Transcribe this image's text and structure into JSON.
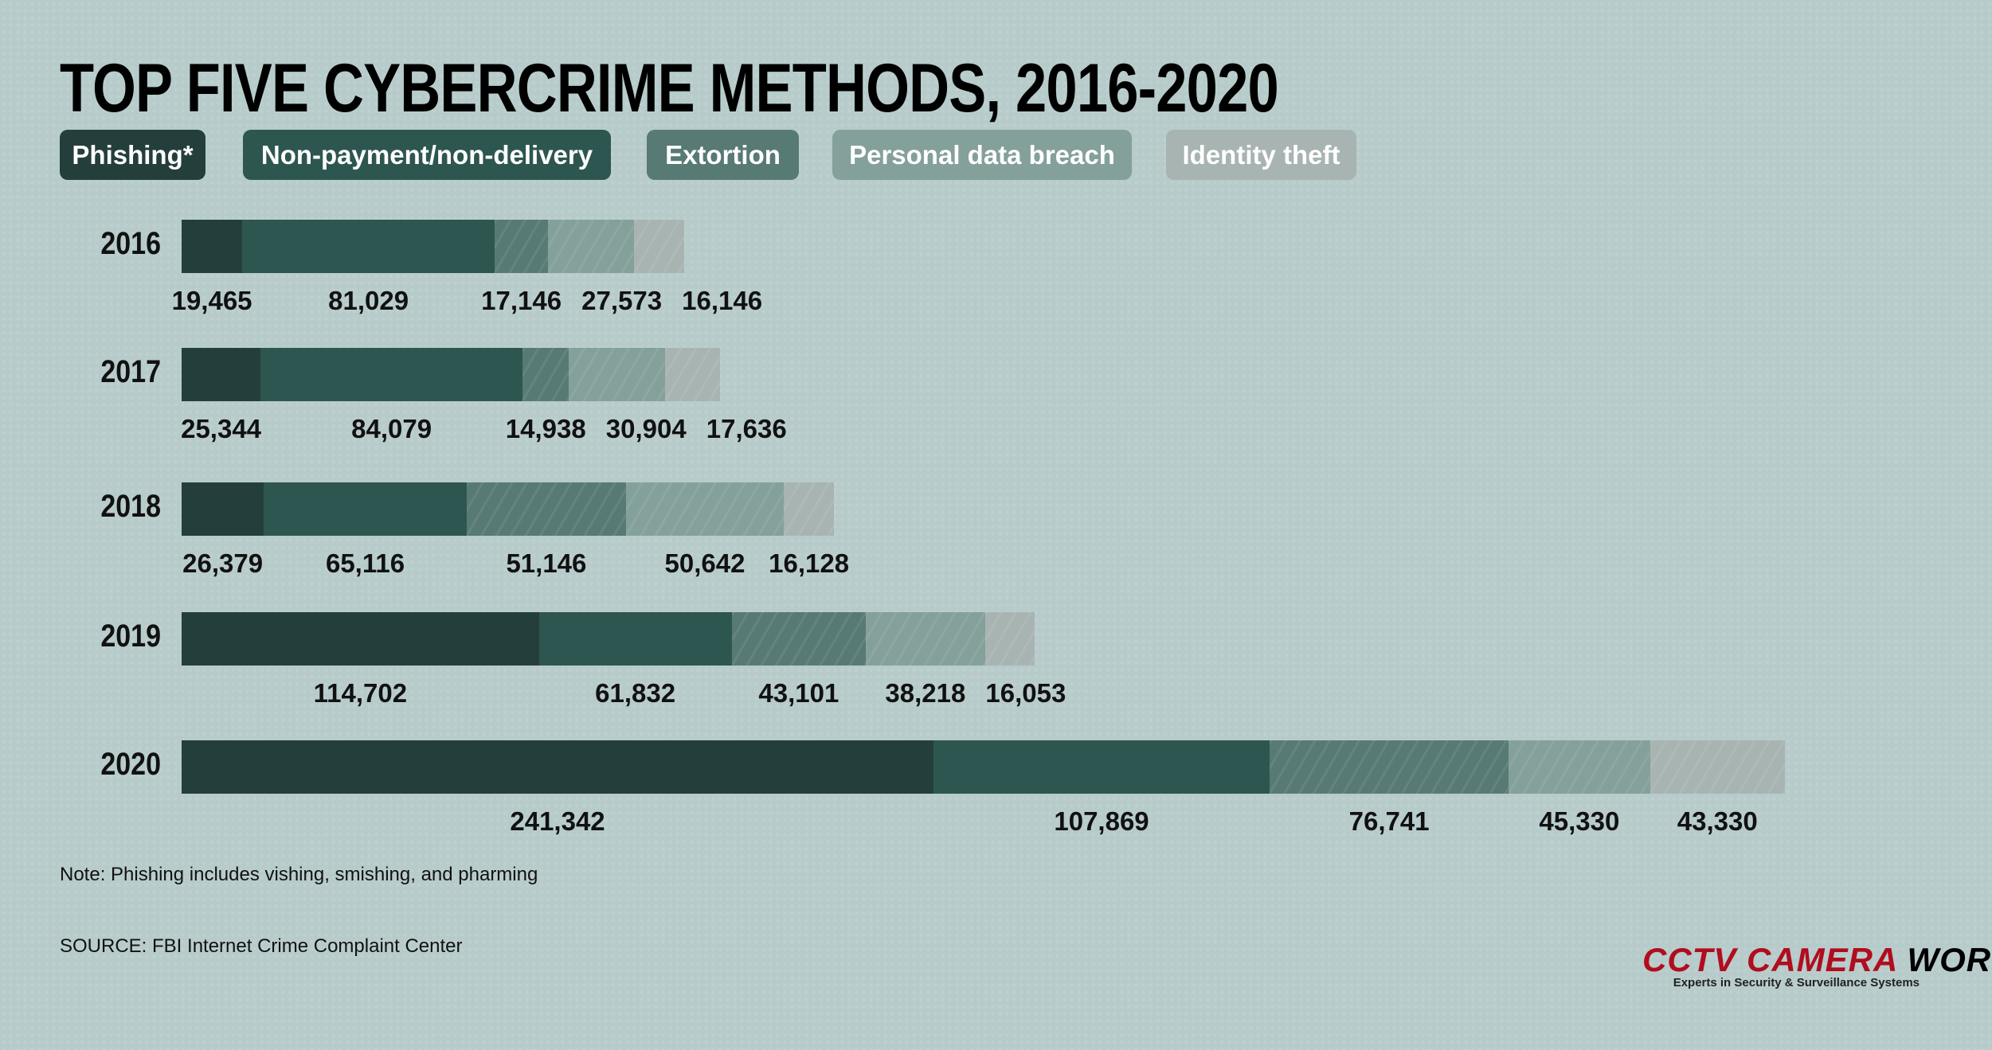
{
  "title": "TOP FIVE CYBERCRIME METHODS, 2016-2020",
  "note": "Note: Phishing includes vishing, smishing, and pharming",
  "source": "SOURCE: FBI Internet Crime Complaint Center",
  "logo": {
    "part1": "CCTV CAMERA",
    "part2": "WORLD",
    "tagline": "Experts in Security & Surveillance Systems"
  },
  "chart_data": {
    "type": "bar",
    "orientation": "horizontal",
    "stacked": true,
    "title": "TOP FIVE CYBERCRIME METHODS, 2016-2020",
    "categories": [
      "2016",
      "2017",
      "2018",
      "2019",
      "2020"
    ],
    "series": [
      {
        "name": "Phishing*",
        "color": "#243f3b",
        "hatch": false,
        "values": [
          19465,
          25344,
          26379,
          114702,
          241342
        ],
        "labels": [
          "19,465",
          "25,344",
          "26,379",
          "114,702",
          "241,342"
        ]
      },
      {
        "name": "Non-payment/non-delivery",
        "color": "#2e5650",
        "hatch": false,
        "values": [
          81029,
          84079,
          65116,
          61832,
          107869
        ],
        "labels": [
          "81,029",
          "84,079",
          "65,116",
          "61,832",
          "107,869"
        ]
      },
      {
        "name": "Extortion",
        "color": "#587a74",
        "hatch": true,
        "values": [
          17146,
          14938,
          51146,
          43101,
          76741
        ],
        "labels": [
          "17,146",
          "14,938",
          "51,146",
          "43,101",
          "76,741"
        ]
      },
      {
        "name": "Personal data breach",
        "color": "#84a09b",
        "hatch": true,
        "values": [
          27573,
          30904,
          50642,
          38218,
          45330
        ],
        "labels": [
          "27,573",
          "30,904",
          "50,642",
          "38,218",
          "45,330"
        ]
      },
      {
        "name": "Identity theft",
        "color": "#a8b4b2",
        "hatch": true,
        "values": [
          16146,
          17636,
          16128,
          16053,
          43330
        ],
        "labels": [
          "16,146",
          "17,636",
          "16,128",
          "16,053",
          "43,330"
        ]
      }
    ]
  }
}
